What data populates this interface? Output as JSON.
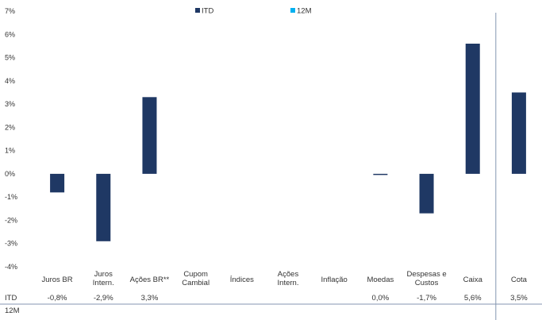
{
  "chart_data": {
    "type": "bar",
    "categories": [
      "Juros BR",
      "Juros Intern.",
      "Ações BR**",
      "Cupom Cambial",
      "Índices",
      "Ações Intern.",
      "Inflação",
      "Moedas",
      "Despesas e Custos",
      "Caixa",
      "Cota"
    ],
    "category_lines": [
      [
        "Juros BR"
      ],
      [
        "Juros",
        "Intern."
      ],
      [
        "Ações BR**"
      ],
      [
        "Cupom",
        "Cambial"
      ],
      [
        "Índices"
      ],
      [
        "Ações",
        "Intern."
      ],
      [
        "Inflação"
      ],
      [
        "Moedas"
      ],
      [
        "Despesas e",
        "Custos"
      ],
      [
        "Caixa"
      ],
      [
        "Cota"
      ]
    ],
    "series": [
      {
        "name": "ITD",
        "color": "#1f3864",
        "values": [
          -0.8,
          -2.9,
          3.3,
          null,
          null,
          null,
          null,
          -0.05,
          -1.7,
          5.6,
          3.5
        ],
        "labels": [
          "-0,8%",
          "-2,9%",
          "3,3%",
          "",
          "",
          "",
          "",
          "0,0%",
          "-1,7%",
          "5,6%",
          "3,5%"
        ]
      },
      {
        "name": "12M",
        "color": "#00b0f0",
        "values": [
          null,
          null,
          null,
          null,
          null,
          null,
          null,
          null,
          null,
          null,
          null
        ],
        "labels": [
          "",
          "",
          "",
          "",
          "",
          "",
          "",
          "",
          "",
          "",
          ""
        ]
      }
    ],
    "ylim": [
      -4,
      7
    ],
    "yticks": [
      "-4%",
      "-3%",
      "-2%",
      "-1%",
      "0%",
      "1%",
      "2%",
      "3%",
      "4%",
      "5%",
      "6%",
      "7%"
    ],
    "legend_position": "top-center",
    "xlabel": "",
    "ylabel": ""
  }
}
